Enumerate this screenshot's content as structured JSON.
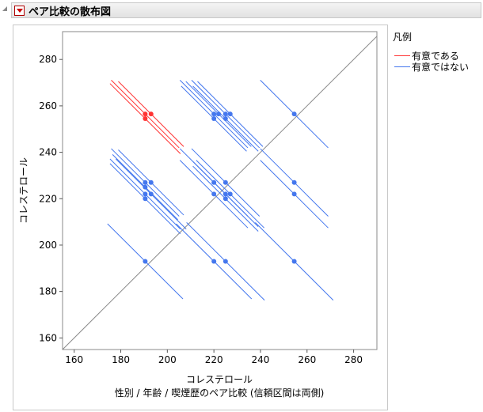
{
  "report": {
    "title": "ペア比較の散布図"
  },
  "legend": {
    "title": "凡例",
    "items": [
      {
        "label": "有意である",
        "color": "#ff3333"
      },
      {
        "label": "有意ではない",
        "color": "#4477ee"
      }
    ]
  },
  "chart_data": {
    "type": "scatter",
    "xlabel": "コレステロール",
    "ylabel": "コレステロール",
    "caption": "性別 / 年齢 / 喫煙歴のペア比較 (信頼区間は両側)",
    "xlim": [
      155,
      290
    ],
    "ylim": [
      155,
      292
    ],
    "xticks": [
      160,
      180,
      200,
      220,
      240,
      260,
      280
    ],
    "yticks": [
      160,
      180,
      200,
      220,
      240,
      260,
      280
    ],
    "tick_labels": [
      "160",
      "180",
      "200",
      "220",
      "240",
      "260",
      "280"
    ],
    "grid": false,
    "diagonal_reference": true,
    "legend_position": "right",
    "significant_color": "#ff3333",
    "not_significant_color": "#4477ee",
    "diamond_half_width_factor": 0.54,
    "significant": [
      {
        "x": 190.5,
        "y": 256.5,
        "ci": 27
      },
      {
        "x": 190.5,
        "y": 254.5,
        "ci": 28
      },
      {
        "x": 193,
        "y": 256.5,
        "ci": 26
      }
    ],
    "not_significant": [
      {
        "x": 190.5,
        "y": 227,
        "ci": 27
      },
      {
        "x": 193,
        "y": 227,
        "ci": 26
      },
      {
        "x": 190.5,
        "y": 225,
        "ci": 26
      },
      {
        "x": 190.5,
        "y": 222,
        "ci": 28
      },
      {
        "x": 193,
        "y": 222,
        "ci": 28
      },
      {
        "x": 190.5,
        "y": 220,
        "ci": 28
      },
      {
        "x": 190.5,
        "y": 193,
        "ci": 30
      },
      {
        "x": 220,
        "y": 256.5,
        "ci": 27
      },
      {
        "x": 222,
        "y": 256.5,
        "ci": 26
      },
      {
        "x": 225,
        "y": 256.5,
        "ci": 27
      },
      {
        "x": 227,
        "y": 256.5,
        "ci": 26
      },
      {
        "x": 220,
        "y": 254.5,
        "ci": 26
      },
      {
        "x": 225,
        "y": 254.5,
        "ci": 26
      },
      {
        "x": 220,
        "y": 227,
        "ci": 27
      },
      {
        "x": 225,
        "y": 227,
        "ci": 27
      },
      {
        "x": 220,
        "y": 222,
        "ci": 27
      },
      {
        "x": 225,
        "y": 222,
        "ci": 26
      },
      {
        "x": 227,
        "y": 222,
        "ci": 27
      },
      {
        "x": 225,
        "y": 220,
        "ci": 26
      },
      {
        "x": 220,
        "y": 193,
        "ci": 30
      },
      {
        "x": 225,
        "y": 193,
        "ci": 31
      },
      {
        "x": 254.5,
        "y": 256.5,
        "ci": 27
      },
      {
        "x": 254.5,
        "y": 227,
        "ci": 27
      },
      {
        "x": 254.5,
        "y": 222,
        "ci": 27
      },
      {
        "x": 254.5,
        "y": 193,
        "ci": 31
      }
    ]
  }
}
